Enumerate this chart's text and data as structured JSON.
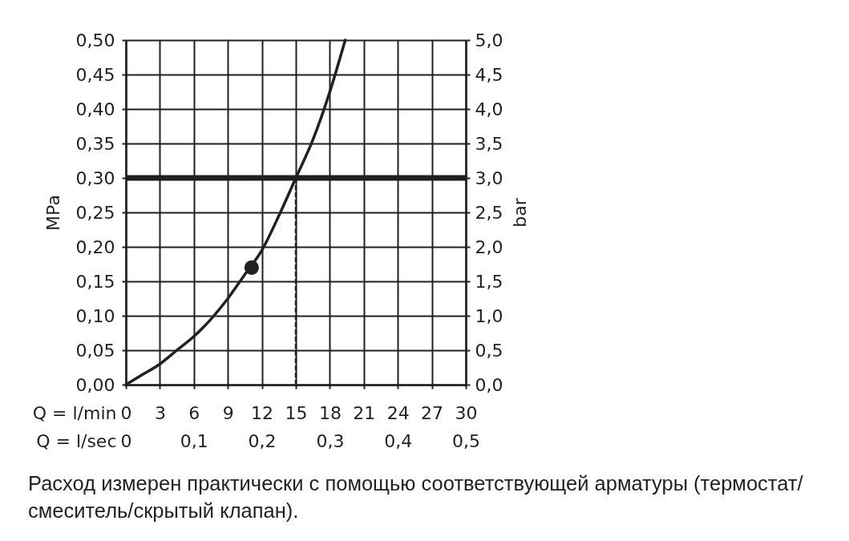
{
  "chart_data": {
    "type": "line",
    "xlabel": "Q = l/min",
    "ylabel": "MPa",
    "y2label": "bar",
    "x2label": "Q = l/sec",
    "annotations": [
      "Расход измерен практически с помощью соответствующей арматуры (термостат/смеситель/скрытый клапан)."
    ],
    "series": [
      {
        "color": "#231f20",
        "x": [
          0,
          1.5,
          3,
          4.5,
          6,
          7.5,
          9,
          10.5,
          12,
          13.5,
          15,
          16.5,
          18,
          19.36
        ],
        "values": [
          0,
          0.015,
          0.03,
          0.05,
          0.07,
          0.095,
          0.125,
          0.16,
          0.195,
          0.245,
          0.3,
          0.355,
          0.425,
          0.5
        ]
      },
      {
        "type": "scatter",
        "color": "#231f20",
        "marker": "circle",
        "x": [
          11.1
        ],
        "values": [
          0.17
        ]
      }
    ],
    "xlim": [
      0,
      30
    ],
    "xticks": [
      0,
      3,
      6,
      9,
      12,
      15,
      18,
      21,
      24,
      27,
      30
    ],
    "ylim": [
      0,
      0.5
    ],
    "yticks": [
      {
        "value": 0,
        "label": "0,00"
      },
      {
        "value": 0.05,
        "label": "0,05"
      },
      {
        "value": 0.1,
        "label": "0,10"
      },
      {
        "value": 0.15,
        "label": "0,15"
      },
      {
        "value": 0.2,
        "label": "0,20"
      },
      {
        "value": 0.25,
        "label": "0,25"
      },
      {
        "value": 0.3,
        "label": "0,30"
      },
      {
        "value": 0.35,
        "label": "0,35"
      },
      {
        "value": 0.4,
        "label": "0,40"
      },
      {
        "value": 0.45,
        "label": "0,45"
      },
      {
        "value": 0.5,
        "label": "0,50"
      }
    ],
    "x2lim": [
      0,
      0.5
    ],
    "x2ticks": [
      0,
      {
        "value": 0.1,
        "label": "0,1"
      },
      {
        "value": 0.2,
        "label": "0,2"
      },
      {
        "value": 0.3,
        "label": "0,3"
      },
      {
        "value": 0.4,
        "label": "0,4"
      },
      {
        "value": 0.5,
        "label": "0,5"
      }
    ],
    "y2lim": [
      0,
      5
    ],
    "y2ticks": [
      {
        "value": 0,
        "label": "0,0"
      },
      {
        "value": 0.5,
        "label": "0,5"
      },
      {
        "value": 1,
        "label": "1,0"
      },
      {
        "value": 1.5,
        "label": "1,5"
      },
      {
        "value": 2,
        "label": "2,0"
      },
      {
        "value": 2.5,
        "label": "2,5"
      },
      {
        "value": 3,
        "label": "3,0"
      },
      {
        "value": 3.5,
        "label": "3,5"
      },
      {
        "value": 4,
        "label": "4,0"
      },
      {
        "value": 4.5,
        "label": "4,5"
      },
      {
        "value": 5,
        "label": "5,0"
      }
    ],
    "ref_lines": [
      {
        "axis": "y",
        "value": 0.3,
        "color": "#231f20"
      },
      {
        "axis": "x",
        "value": 15,
        "line_style": "dashed",
        "color": "#231f20"
      }
    ],
    "grid": true
  }
}
